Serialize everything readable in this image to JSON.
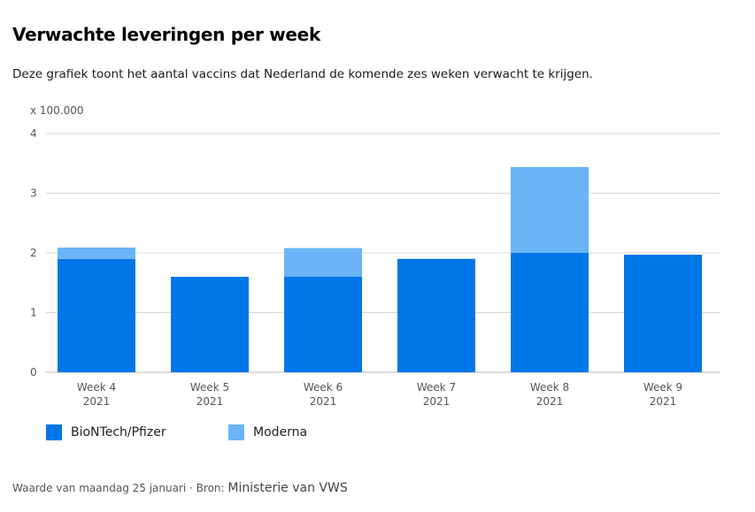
{
  "title": "Verwachte leveringen per week",
  "subtitle": "Deze grafiek toont het aantal vaccins dat Nederland de komende zes weken verwacht te krijgen.",
  "footer": {
    "prefix": "Waarde van maandag 25 januari · Bron: ",
    "source": "Ministerie van VWS"
  },
  "chart_data": {
    "type": "bar",
    "stacked": true,
    "unit_label": "x 100.000",
    "categories": [
      [
        "Week 4",
        "2021"
      ],
      [
        "Week 5",
        "2021"
      ],
      [
        "Week 6",
        "2021"
      ],
      [
        "Week 7",
        "2021"
      ],
      [
        "Week 8",
        "2021"
      ],
      [
        "Week 9",
        "2021"
      ]
    ],
    "series": [
      {
        "name": "BioNTech/Pfizer",
        "color": "#0077e8",
        "values": [
          1.9,
          1.6,
          1.6,
          1.9,
          2.0,
          1.97
        ]
      },
      {
        "name": "Moderna",
        "color": "#6ab4f7",
        "values": [
          0.19,
          0,
          0.48,
          0,
          1.44,
          0
        ]
      }
    ],
    "ylim": [
      0,
      4
    ],
    "yticks": [
      "0",
      "1",
      "2",
      "3",
      "4"
    ],
    "grid": true,
    "legend": "bottom-left"
  }
}
